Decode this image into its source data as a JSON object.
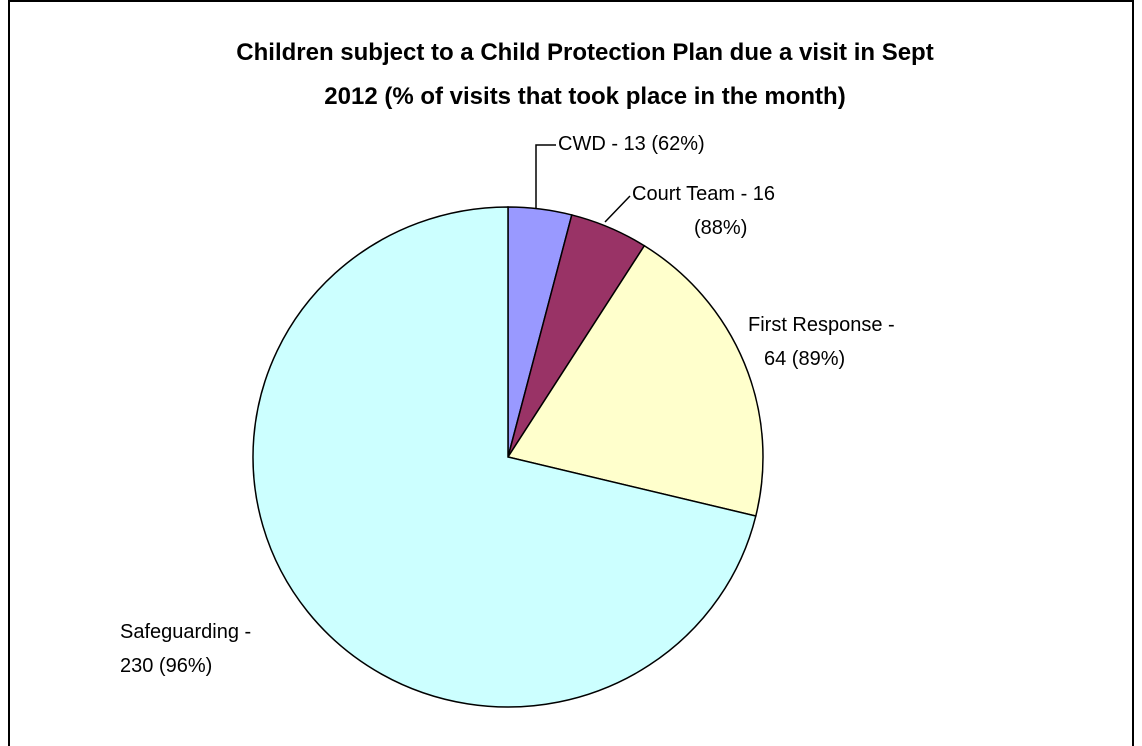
{
  "chart_data": {
    "type": "pie",
    "title_lines": [
      "Children subject to a Child Protection Plan due a visit in Sept",
      "2012 (% of visits that took place in the month)"
    ],
    "slices": [
      {
        "label_lines": [
          "CWD - 13 (62%)"
        ],
        "value": 13,
        "color": "#9999ff"
      },
      {
        "label_lines": [
          "Court Team - 16",
          "(88%)"
        ],
        "value": 16,
        "color": "#993366"
      },
      {
        "label_lines": [
          "First Response -",
          "64 (89%)"
        ],
        "value": 64,
        "color": "#ffffcc"
      },
      {
        "label_lines": [
          "Safeguarding -",
          "230 (96%)"
        ],
        "value": 230,
        "color": "#ccffff"
      }
    ]
  }
}
